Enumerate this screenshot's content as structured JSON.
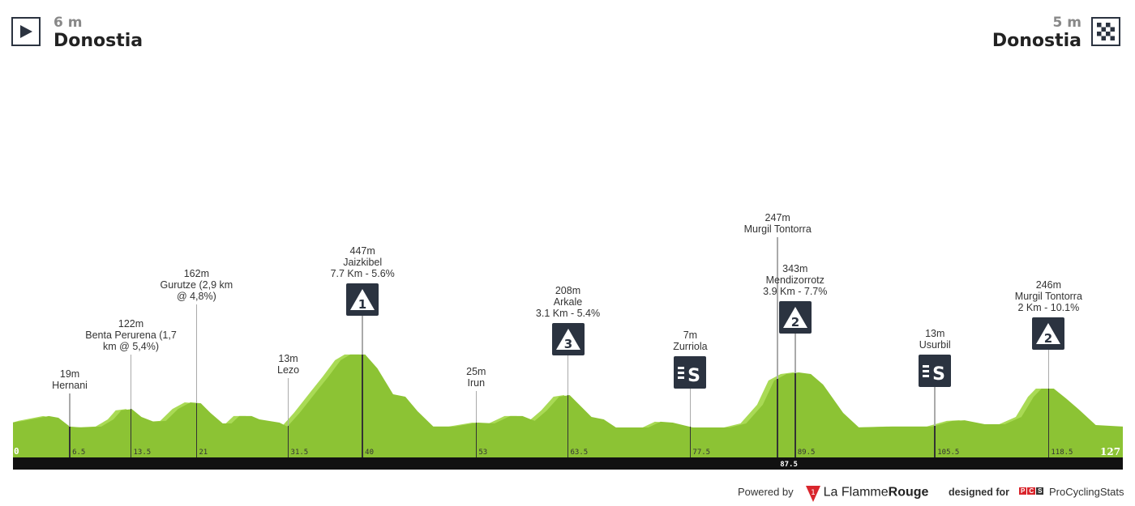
{
  "start": {
    "altitude": "6 m",
    "city": "Donostia",
    "icon": "play-icon"
  },
  "finish": {
    "altitude": "5 m",
    "city": "Donostia",
    "icon": "checkered-flag-icon"
  },
  "chart_data": {
    "type": "area",
    "title": "",
    "xlabel": "km",
    "ylabel": "m",
    "xlim": [
      0,
      127
    ],
    "x_start_label": "0",
    "x_end_label": "127",
    "profile": [
      [
        0,
        40
      ],
      [
        1.3,
        50
      ],
      [
        4.1,
        78
      ],
      [
        5.2,
        68
      ],
      [
        6.5,
        15
      ],
      [
        7.8,
        10
      ],
      [
        10.1,
        15
      ],
      [
        11.5,
        58
      ],
      [
        12.4,
        112
      ],
      [
        13.6,
        120
      ],
      [
        14.7,
        73
      ],
      [
        16.1,
        44
      ],
      [
        17.5,
        49
      ],
      [
        18.9,
        121
      ],
      [
        20.3,
        160
      ],
      [
        21.5,
        155
      ],
      [
        22.6,
        97
      ],
      [
        24,
        34
      ],
      [
        25,
        34
      ],
      [
        25.9,
        78
      ],
      [
        27.3,
        78
      ],
      [
        28.2,
        58
      ],
      [
        30.5,
        39
      ],
      [
        31.4,
        15
      ],
      [
        32.8,
        97
      ],
      [
        34.7,
        223
      ],
      [
        36.1,
        315
      ],
      [
        37.5,
        413
      ],
      [
        38.6,
        447
      ],
      [
        40.3,
        447
      ],
      [
        41.7,
        364
      ],
      [
        43.5,
        209
      ],
      [
        44.9,
        194
      ],
      [
        46.3,
        107
      ],
      [
        48.1,
        15
      ],
      [
        50.5,
        15
      ],
      [
        53.2,
        39
      ],
      [
        55.1,
        34
      ],
      [
        56.9,
        78
      ],
      [
        58.3,
        78
      ],
      [
        59.7,
        49
      ],
      [
        61.1,
        112
      ],
      [
        62.5,
        194
      ],
      [
        63.7,
        204
      ],
      [
        64.8,
        146
      ],
      [
        66.2,
        73
      ],
      [
        67.6,
        58
      ],
      [
        69,
        10
      ],
      [
        72.7,
        10
      ],
      [
        74.1,
        44
      ],
      [
        75.5,
        39
      ],
      [
        77.8,
        10
      ],
      [
        82,
        10
      ],
      [
        83.9,
        34
      ],
      [
        85.8,
        146
      ],
      [
        87.1,
        291
      ],
      [
        88.5,
        330
      ],
      [
        89.9,
        340
      ],
      [
        91.3,
        330
      ],
      [
        92.7,
        267
      ],
      [
        95,
        97
      ],
      [
        96.8,
        10
      ],
      [
        100.6,
        15
      ],
      [
        105.2,
        15
      ],
      [
        107.5,
        49
      ],
      [
        108.9,
        53
      ],
      [
        111.2,
        29
      ],
      [
        113.5,
        29
      ],
      [
        115.4,
        73
      ],
      [
        116.8,
        194
      ],
      [
        117.7,
        243
      ],
      [
        119.1,
        243
      ],
      [
        120.5,
        184
      ],
      [
        121.9,
        121
      ],
      [
        123.9,
        24
      ],
      [
        127,
        15
      ]
    ],
    "markers": [
      {
        "km": 6.5,
        "km_label": "6.5",
        "altitude": "19m",
        "name": "Hernani",
        "detail": "",
        "type": "place"
      },
      {
        "km": 13.5,
        "km_label": "13.5",
        "altitude": "122m",
        "name": "Benta Perurena (1,7",
        "detail": "km @ 5,4%)",
        "type": "place"
      },
      {
        "km": 21,
        "km_label": "21",
        "altitude": "162m",
        "name": "Gurutze (2,9 km",
        "detail": "@ 4,8%)",
        "type": "place"
      },
      {
        "km": 31.5,
        "km_label": "31.5",
        "altitude": "13m",
        "name": "Lezo",
        "detail": "",
        "type": "place"
      },
      {
        "km": 40,
        "km_label": "40",
        "altitude": "447m",
        "name": "Jaizkibel",
        "detail": "7.7 Km - 5.6%",
        "type": "climb",
        "category": "1"
      },
      {
        "km": 53,
        "km_label": "53",
        "altitude": "25m",
        "name": "Irun",
        "detail": "",
        "type": "place"
      },
      {
        "km": 63.5,
        "km_label": "63.5",
        "altitude": "208m",
        "name": "Arkale",
        "detail": "3.1 Km - 5.4%",
        "type": "climb",
        "category": "3"
      },
      {
        "km": 77.5,
        "km_label": "77.5",
        "altitude": "7m",
        "name": "Zurriola",
        "detail": "",
        "type": "sprint",
        "category": "S"
      },
      {
        "km": 87.5,
        "km_label": "87.5",
        "altitude": "247m",
        "name": "Murgil Tontorra",
        "detail": "",
        "type": "place-low"
      },
      {
        "km": 89.5,
        "km_label": "89.5",
        "altitude": "343m",
        "name": "Mendizorrotz",
        "detail": "3.9 Km - 7.7%",
        "type": "climb",
        "category": "2"
      },
      {
        "km": 105.5,
        "km_label": "105.5",
        "altitude": "13m",
        "name": "Usurbil",
        "detail": "",
        "type": "sprint",
        "category": "S"
      },
      {
        "km": 118.5,
        "km_label": "118.5",
        "altitude": "246m",
        "name": "Murgil Tontorra",
        "detail": "2 Km - 10.1%",
        "type": "climb",
        "category": "2"
      }
    ],
    "colors": {
      "profile": "#8cc334",
      "highlight": "#a9da55",
      "bar": "#111111",
      "icon": "#2b3340"
    }
  },
  "footer": {
    "powered_by": "Powered by",
    "flamme_la": "La Flamme",
    "flamme_rouge": "Rouge",
    "designed_for": "designed for",
    "pcs_letters": [
      "P",
      "C",
      "S"
    ],
    "pcs_name": "ProCyclingStats"
  }
}
